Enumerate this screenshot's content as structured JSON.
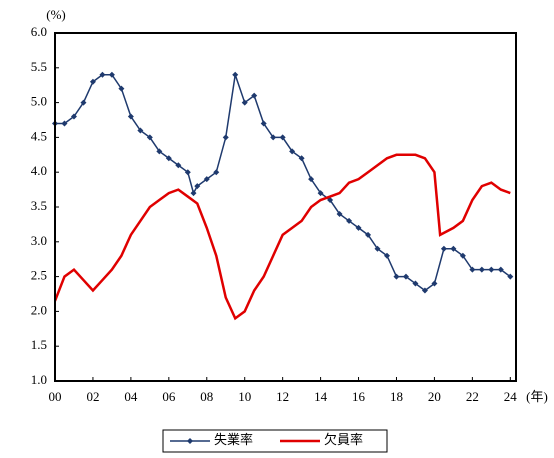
{
  "chart_data": {
    "type": "line",
    "y_unit_label": "(%)",
    "x_unit_label": "(年)",
    "xlim": [
      0,
      24.3
    ],
    "ylim": [
      1,
      6
    ],
    "xticks": [
      {
        "value": 0,
        "label": "00"
      },
      {
        "value": 2,
        "label": "02"
      },
      {
        "value": 4,
        "label": "04"
      },
      {
        "value": 6,
        "label": "06"
      },
      {
        "value": 8,
        "label": "08"
      },
      10,
      12,
      14,
      16,
      18,
      20,
      22,
      24
    ],
    "yticks": [
      {
        "value": 1,
        "label": "1.0"
      },
      1.5,
      {
        "value": 2,
        "label": "2.0"
      },
      2.5,
      {
        "value": 3,
        "label": "3.0"
      },
      3.5,
      {
        "value": 4,
        "label": "4.0"
      },
      4.5,
      {
        "value": 5,
        "label": "5.0"
      },
      5.5,
      {
        "value": 6,
        "label": "6.0"
      }
    ],
    "legend": "bottom",
    "series": [
      {
        "name": "失業率",
        "color": "#1f3a6e",
        "marker": "diamond",
        "x": [
          0,
          0.5,
          1,
          1.5,
          2,
          2.5,
          3,
          3.5,
          4,
          4.5,
          5,
          5.5,
          6,
          6.5,
          7,
          7.3,
          7.5,
          8,
          8.5,
          9,
          9.5,
          10,
          10.5,
          11,
          11.5,
          12,
          12.5,
          13,
          13.5,
          14,
          14.5,
          15,
          15.5,
          16,
          16.5,
          17,
          17.5,
          18,
          18.5,
          19,
          19.5,
          20,
          20.5,
          21,
          21.5,
          22,
          22.5,
          23,
          23.5,
          24
        ],
        "values": [
          4.7,
          4.7,
          4.8,
          5.0,
          5.3,
          5.4,
          5.4,
          5.2,
          4.8,
          4.6,
          4.5,
          4.3,
          4.2,
          4.1,
          4.0,
          3.7,
          3.8,
          3.9,
          4.0,
          4.5,
          5.4,
          5.0,
          5.1,
          4.7,
          4.5,
          4.5,
          4.3,
          4.2,
          3.9,
          3.7,
          3.6,
          3.4,
          3.3,
          3.2,
          3.1,
          2.9,
          2.8,
          2.5,
          2.5,
          2.4,
          2.3,
          2.4,
          2.9,
          2.9,
          2.8,
          2.6,
          2.6,
          2.6,
          2.6,
          2.5
        ]
      },
      {
        "name": "欠員率",
        "color": "#e00000",
        "x": [
          0,
          0.5,
          1,
          1.5,
          2,
          2.5,
          3,
          3.5,
          4,
          4.5,
          5,
          5.5,
          6,
          6.5,
          7,
          7.5,
          8,
          8.5,
          9,
          9.5,
          10,
          10.5,
          11,
          11.5,
          12,
          12.5,
          13,
          13.5,
          14,
          14.5,
          15,
          15.5,
          16,
          16.5,
          17,
          17.5,
          18,
          18.5,
          19,
          19.5,
          20,
          20.3,
          21,
          21.5,
          22,
          22.5,
          23,
          23.5,
          24
        ],
        "values": [
          2.15,
          2.5,
          2.6,
          2.45,
          2.3,
          2.45,
          2.6,
          2.8,
          3.1,
          3.3,
          3.5,
          3.6,
          3.7,
          3.75,
          3.65,
          3.55,
          3.2,
          2.8,
          2.2,
          1.9,
          2.0,
          2.3,
          2.5,
          2.8,
          3.1,
          3.2,
          3.3,
          3.5,
          3.6,
          3.65,
          3.7,
          3.85,
          3.9,
          4.0,
          4.1,
          4.2,
          4.25,
          4.25,
          4.25,
          4.2,
          4.0,
          3.1,
          3.2,
          3.3,
          3.6,
          3.8,
          3.85,
          3.75,
          3.7
        ]
      }
    ]
  }
}
